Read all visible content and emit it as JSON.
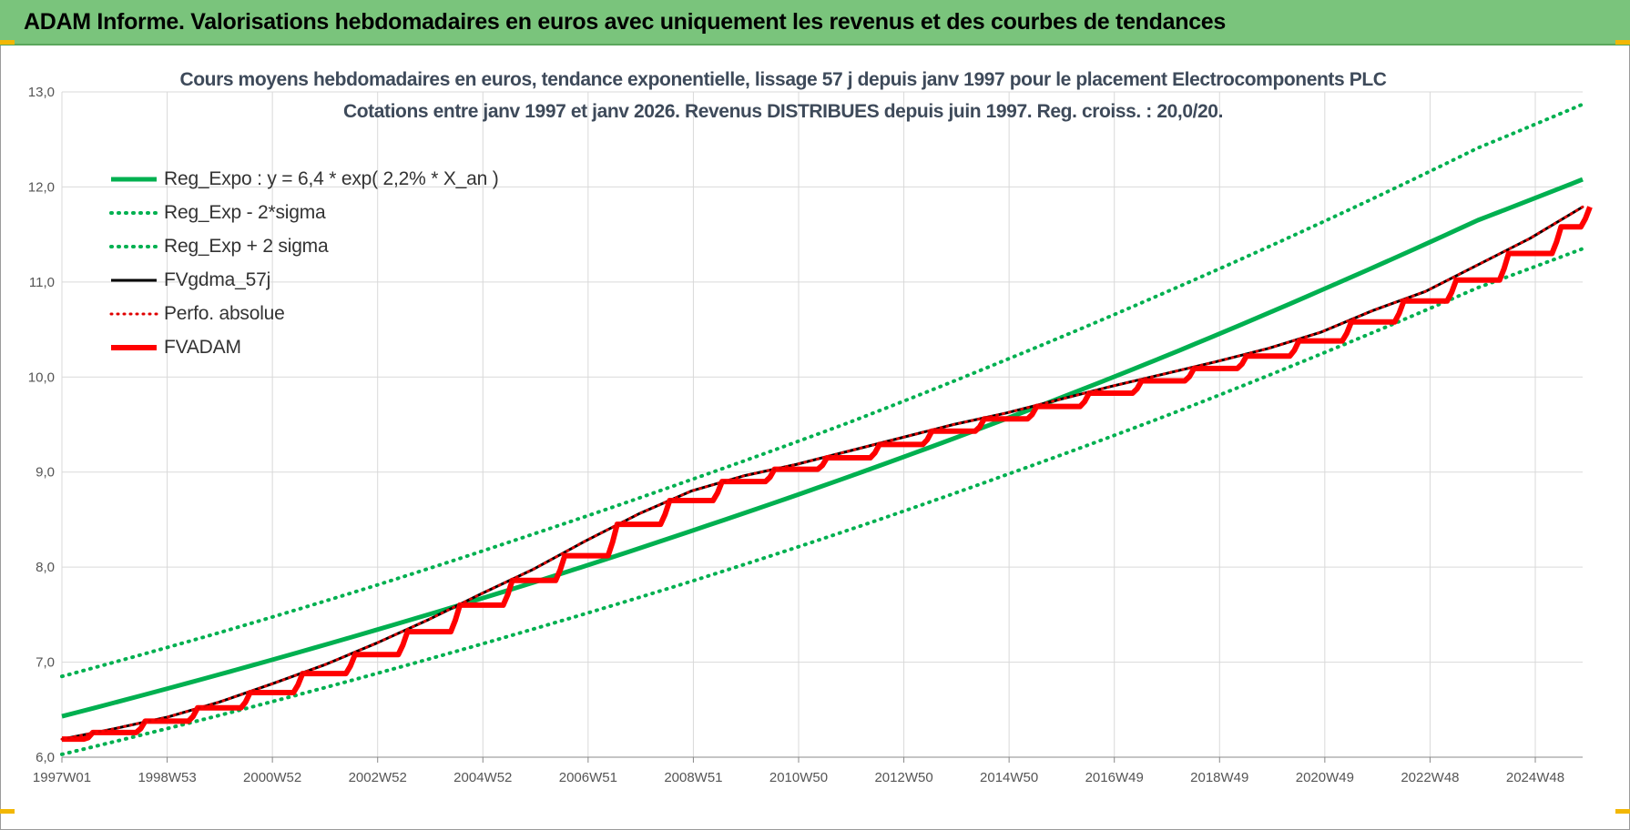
{
  "banner": {
    "title": "ADAM Informe. Valorisations hebdomadaires en euros avec uniquement les revenus et des courbes de tendances"
  },
  "colors": {
    "banner": "#7ac47c",
    "trend": "#00b050",
    "fv": "#ff0000",
    "smooth": "#000000",
    "perfo": "#e00000"
  },
  "chart_data": {
    "type": "line",
    "title": "Cours moyens hebdomadaires en euros, tendance exponentielle, lissage 57 j depuis janv 1997 pour le placement Electrocomponents PLC",
    "subtitle": "Cotations entre janv 1997 et janv 2026. Revenus DISTRIBUES depuis juin 1997. Reg. croiss. : 20,0/20.",
    "ylim": [
      6.0,
      13.0
    ],
    "y_ticks": [
      "6,0",
      "7,0",
      "8,0",
      "9,0",
      "10,0",
      "11,0",
      "12,0",
      "13,0"
    ],
    "x_ticks": [
      "1997W01",
      "1998W53",
      "2000W52",
      "2002W52",
      "2004W52",
      "2006W51",
      "2008W51",
      "2010W50",
      "2012W50",
      "2014W50",
      "2016W49",
      "2018W49",
      "2020W49",
      "2022W48",
      "2024W48"
    ],
    "grid": true,
    "legend_position": "top-left",
    "series": [
      {
        "name": "Reg_Expo : y = 6,4 * exp( 2,2% *  X_an )",
        "style": "solid",
        "color": "#00b050",
        "x": [
          1997.0,
          2000.0,
          2003.0,
          2006.0,
          2009.0,
          2012.0,
          2015.0,
          2018.0,
          2021.0,
          2024.0,
          2026.0
        ],
        "y": [
          6.43,
          6.87,
          7.34,
          7.84,
          8.38,
          8.95,
          9.56,
          10.21,
          10.91,
          11.65,
          12.08
        ]
      },
      {
        "name": "Reg_Exp - 2*sigma",
        "style": "dotted",
        "color": "#00b050",
        "x": [
          1997.0,
          2000.0,
          2003.0,
          2006.0,
          2009.0,
          2012.0,
          2015.0,
          2018.0,
          2021.0,
          2024.0,
          2026.0
        ],
        "y": [
          6.03,
          6.44,
          6.88,
          7.35,
          7.85,
          8.39,
          8.97,
          9.58,
          10.24,
          10.94,
          11.35
        ]
      },
      {
        "name": "Reg_Exp + 2 sigma",
        "style": "dotted",
        "color": "#00b050",
        "x": [
          1997.0,
          2000.0,
          2003.0,
          2006.0,
          2009.0,
          2012.0,
          2015.0,
          2018.0,
          2021.0,
          2024.0,
          2026.0
        ],
        "y": [
          6.85,
          7.31,
          7.81,
          8.35,
          8.92,
          9.52,
          10.18,
          10.88,
          11.62,
          12.41,
          12.87
        ]
      },
      {
        "name": "FVgdma_57j",
        "style": "solid",
        "color": "#000000",
        "x": [
          1997.0,
          1998.0,
          1999.0,
          2000.0,
          2001.0,
          2002.0,
          2003.0,
          2004.0,
          2005.0,
          2006.0,
          2007.0,
          2008.0,
          2009.0,
          2010.0,
          2011.0,
          2012.0,
          2013.0,
          2014.0,
          2015.0,
          2016.0,
          2017.0,
          2018.0,
          2019.0,
          2020.0,
          2021.0,
          2022.0,
          2023.0,
          2024.0,
          2025.0,
          2026.0
        ],
        "y": [
          6.19,
          6.3,
          6.42,
          6.58,
          6.77,
          6.97,
          7.2,
          7.45,
          7.72,
          7.98,
          8.28,
          8.56,
          8.8,
          8.96,
          9.08,
          9.22,
          9.36,
          9.5,
          9.62,
          9.76,
          9.9,
          10.03,
          10.16,
          10.3,
          10.47,
          10.7,
          10.9,
          11.18,
          11.46,
          11.79
        ]
      },
      {
        "name": "Perfo. absolue",
        "style": "dotted",
        "color": "#e00000",
        "x": [
          1997.0,
          1998.0,
          1999.0,
          2000.0,
          2001.0,
          2002.0,
          2003.0,
          2004.0,
          2005.0,
          2006.0,
          2007.0,
          2008.0,
          2009.0,
          2010.0,
          2011.0,
          2012.0,
          2013.0,
          2014.0,
          2015.0,
          2016.0,
          2017.0,
          2018.0,
          2019.0,
          2020.0,
          2021.0,
          2022.0,
          2023.0,
          2024.0,
          2025.0,
          2026.0
        ],
        "y": [
          6.19,
          6.3,
          6.42,
          6.58,
          6.77,
          6.97,
          7.2,
          7.45,
          7.72,
          7.98,
          8.28,
          8.56,
          8.8,
          8.96,
          9.08,
          9.22,
          9.36,
          9.5,
          9.62,
          9.76,
          9.9,
          10.03,
          10.16,
          10.3,
          10.47,
          10.7,
          10.9,
          11.18,
          11.46,
          11.79
        ]
      },
      {
        "name": "FVADAM",
        "style": "step",
        "color": "#ff0000",
        "x": [
          1997.0,
          1997.45,
          1998.45,
          1999.45,
          2000.45,
          2001.45,
          2002.45,
          2003.45,
          2004.45,
          2005.45,
          2006.45,
          2007.45,
          2008.45,
          2009.45,
          2010.45,
          2011.45,
          2012.45,
          2013.45,
          2014.45,
          2015.45,
          2016.45,
          2017.45,
          2018.45,
          2019.45,
          2020.45,
          2021.45,
          2022.45,
          2023.45,
          2024.45,
          2025.45,
          2026.0
        ],
        "y": [
          6.19,
          6.26,
          6.38,
          6.52,
          6.68,
          6.88,
          7.08,
          7.32,
          7.6,
          7.86,
          8.12,
          8.45,
          8.7,
          8.9,
          9.03,
          9.15,
          9.29,
          9.43,
          9.56,
          9.69,
          9.83,
          9.96,
          10.09,
          10.22,
          10.38,
          10.58,
          10.8,
          11.02,
          11.3,
          11.58,
          11.79
        ]
      }
    ]
  }
}
